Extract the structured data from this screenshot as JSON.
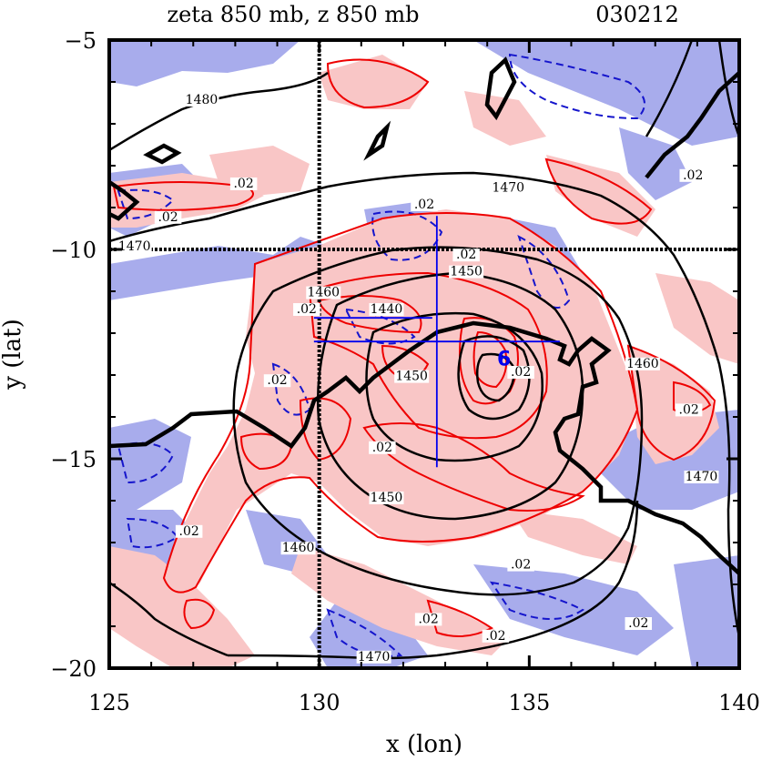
{
  "chart_data": {
    "type": "contour",
    "title": "zeta 850 mb, z 850 mb",
    "date_label": "030212",
    "xlabel": "x (lon)",
    "ylabel": "y (lat)",
    "xlim": [
      125,
      140
    ],
    "ylim": [
      -20,
      -5
    ],
    "x_ticks": [
      125,
      130,
      135,
      140
    ],
    "y_ticks": [
      -5,
      -10,
      -15,
      -20
    ],
    "x_tick_labels": [
      "125",
      "130",
      "135",
      "140"
    ],
    "y_tick_labels": [
      "−5",
      "−10",
      "−15",
      "−20"
    ],
    "grid_lon": [
      130
    ],
    "grid_lat": [
      -10
    ],
    "storm_center": {
      "lon": 132.8,
      "lat": -12.2
    },
    "vorticity_center": {
      "lon": 134.4,
      "lat": -12.6,
      "symbol": "6"
    },
    "height_contour_labels": [
      {
        "text": "1480",
        "lon": 127.2,
        "lat": -6.5
      },
      {
        "text": "1470",
        "lon": 134.5,
        "lat": -8.6
      },
      {
        "text": "1470",
        "lon": 125.6,
        "lat": -10.0
      },
      {
        "text": "1460",
        "lon": 130.1,
        "lat": -11.1
      },
      {
        "text": "1450",
        "lon": 133.5,
        "lat": -10.6
      },
      {
        "text": "1460",
        "lon": 137.7,
        "lat": -12.8
      },
      {
        "text": "1470",
        "lon": 139.1,
        "lat": -15.5
      },
      {
        "text": "1450",
        "lon": 131.6,
        "lat": -16.0
      },
      {
        "text": "1460",
        "lon": 129.5,
        "lat": -17.2
      },
      {
        "text": "1470",
        "lon": 131.3,
        "lat": -19.8
      }
    ],
    "vorticity_contour_labels": [
      {
        "text": ".02",
        "lon": 128.2,
        "lat": -8.5
      },
      {
        "text": ".02",
        "lon": 126.4,
        "lat": -9.3
      },
      {
        "text": ".02",
        "lon": 132.5,
        "lat": -9.0
      },
      {
        "text": ".02",
        "lon": 133.5,
        "lat": -10.2
      },
      {
        "text": ".02",
        "lon": 129.7,
        "lat": -11.5
      },
      {
        "text": ".02",
        "lon": 129.0,
        "lat": -13.2
      },
      {
        "text": ".02",
        "lon": 131.5,
        "lat": -14.8
      },
      {
        "text": ".02",
        "lon": 134.8,
        "lat": -13.0
      },
      {
        "text": ".02",
        "lon": 138.8,
        "lat": -13.9
      },
      {
        "text": ".02",
        "lon": 138.9,
        "lat": -8.3
      },
      {
        "text": ".02",
        "lon": 126.9,
        "lat": -16.8
      },
      {
        "text": ".02",
        "lon": 134.8,
        "lat": -17.6
      },
      {
        "text": ".02",
        "lon": 132.6,
        "lat": -18.9
      },
      {
        "text": ".02",
        "lon": 134.2,
        "lat": -19.3
      },
      {
        "text": ".02",
        "lon": 137.6,
        "lat": -19.0
      },
      {
        "text": "1440",
        "lon": 131.6,
        "lat": -11.5
      },
      {
        "text": "1450",
        "lon": 132.2,
        "lat": -13.1
      }
    ],
    "colors": {
      "positive_fill": "#f9c6c6",
      "negative_fill": "#a8acec",
      "positive_line": "#ee0000",
      "negative_line": "#1515cc",
      "height_line": "#000000",
      "marker": "#0000ee"
    }
  }
}
